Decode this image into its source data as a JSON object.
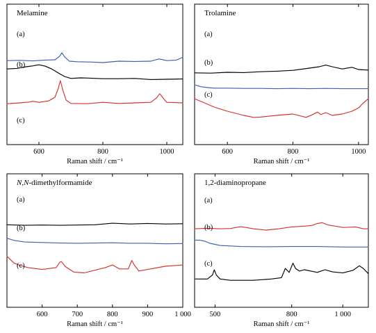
{
  "chart_data": [
    {
      "type": "line",
      "title": "Melamine",
      "title_italic_prefix": "",
      "xlabel": "Raman shift / cm⁻¹",
      "xlim": [
        500,
        1050
      ],
      "xticks": [
        600,
        800,
        1000
      ],
      "tick_labels": [
        "600",
        "800",
        "1000"
      ],
      "y_axis": "none (stacked, offset traces)",
      "grid": false,
      "series": [
        {
          "name": "(a)",
          "color": "#3a5fb0",
          "x": [
            500,
            540,
            580,
            620,
            650,
            665,
            672,
            680,
            695,
            720,
            760,
            800,
            850,
            900,
            950,
            975,
            985,
            1000,
            1030,
            1050
          ],
          "y": [
            0.62,
            0.63,
            0.61,
            0.64,
            0.65,
            0.78,
            0.9,
            0.76,
            0.6,
            0.58,
            0.57,
            0.55,
            0.6,
            0.59,
            0.6,
            0.68,
            0.66,
            0.62,
            0.64,
            0.74
          ]
        },
        {
          "name": "(b)",
          "color": "#000000",
          "x": [
            500,
            530,
            560,
            580,
            600,
            620,
            640,
            660,
            680,
            700,
            730,
            760,
            800,
            850,
            900,
            950,
            1000,
            1050
          ],
          "y": [
            0.32,
            0.34,
            0.4,
            0.43,
            0.47,
            0.42,
            0.32,
            0.18,
            0.05,
            -0.02,
            0.0,
            -0.01,
            -0.03,
            -0.03,
            -0.02,
            -0.06,
            -0.05,
            -0.04
          ]
        },
        {
          "name": "(c)",
          "color": "#d6322c",
          "x": [
            500,
            540,
            570,
            580,
            600,
            630,
            650,
            660,
            667,
            675,
            685,
            700,
            750,
            800,
            850,
            900,
            950,
            968,
            978,
            990,
            1000,
            1050
          ],
          "y": [
            -0.93,
            -0.9,
            -0.87,
            -0.84,
            -0.88,
            -0.83,
            -0.7,
            -0.4,
            -0.1,
            -0.45,
            -0.8,
            -0.92,
            -0.93,
            -0.88,
            -0.92,
            -0.9,
            -0.88,
            -0.72,
            -0.57,
            -0.75,
            -0.88,
            -0.9
          ]
        }
      ]
    },
    {
      "type": "line",
      "title": "Trolamine",
      "title_italic_prefix": "",
      "xlabel": "Raman shift / cm⁻¹",
      "xlim": [
        500,
        1030
      ],
      "xticks": [
        600,
        800,
        1000
      ],
      "tick_labels": [
        "600",
        "800",
        "1000"
      ],
      "y_axis": "none (stacked, offset traces)",
      "grid": false,
      "series": [
        {
          "name": "(a)",
          "color": "#000000",
          "x": [
            500,
            550,
            600,
            650,
            700,
            750,
            800,
            850,
            880,
            900,
            920,
            950,
            980,
            1000,
            1030
          ],
          "y": [
            0.38,
            0.37,
            0.4,
            0.39,
            0.42,
            0.44,
            0.47,
            0.55,
            0.6,
            0.66,
            0.6,
            0.52,
            0.58,
            0.5,
            0.48
          ]
        },
        {
          "name": "(b)",
          "color": "#3a5fb0",
          "x": [
            500,
            520,
            540,
            560,
            600,
            650,
            700,
            750,
            800,
            850,
            900,
            950,
            1000,
            1030
          ],
          "y": [
            -0.05,
            -0.12,
            -0.15,
            -0.17,
            -0.17,
            -0.18,
            -0.18,
            -0.19,
            -0.18,
            -0.19,
            -0.18,
            -0.19,
            -0.19,
            -0.19
          ]
        },
        {
          "name": "(c)",
          "color": "#d6322c",
          "x": [
            500,
            530,
            560,
            600,
            650,
            680,
            700,
            750,
            800,
            840,
            860,
            875,
            885,
            900,
            920,
            950,
            980,
            1000,
            1015,
            1030
          ],
          "y": [
            -0.55,
            -0.7,
            -0.85,
            -1.0,
            -1.15,
            -1.22,
            -1.21,
            -1.15,
            -1.1,
            -1.22,
            -1.12,
            -1.03,
            -1.12,
            -1.05,
            -1.15,
            -1.1,
            -1.0,
            -0.88,
            -0.7,
            -0.55
          ]
        }
      ]
    },
    {
      "type": "line",
      "title": "-dimethylformamide",
      "title_italic_prefix": "N,N",
      "xlabel": "Raman shift / cm⁻¹",
      "xlim": [
        500,
        1000
      ],
      "xticks": [
        600,
        700,
        800,
        900,
        1000
      ],
      "tick_labels": [
        "600",
        "700",
        "800",
        "900",
        "1 000"
      ],
      "y_axis": "none (stacked, offset traces)",
      "grid": false,
      "series": [
        {
          "name": "(a)",
          "color": "#000000",
          "x": [
            500,
            550,
            600,
            650,
            700,
            750,
            800,
            850,
            900,
            950,
            1000
          ],
          "y": [
            0.57,
            0.55,
            0.56,
            0.55,
            0.56,
            0.57,
            0.63,
            0.6,
            0.62,
            0.6,
            0.61
          ]
        },
        {
          "name": "(b)",
          "color": "#3a5fb0",
          "x": [
            500,
            520,
            550,
            600,
            650,
            700,
            750,
            800,
            850,
            900,
            950,
            1000
          ],
          "y": [
            0.06,
            -0.02,
            -0.08,
            -0.1,
            -0.12,
            -0.13,
            -0.12,
            -0.11,
            -0.13,
            -0.13,
            -0.15,
            -0.14
          ]
        },
        {
          "name": "(c)",
          "color": "#d6322c",
          "x": [
            500,
            520,
            540,
            560,
            600,
            640,
            650,
            655,
            665,
            690,
            720,
            750,
            780,
            800,
            820,
            845,
            855,
            862,
            875,
            900,
            950,
            1000
          ],
          "y": [
            -0.62,
            -0.88,
            -0.98,
            -1.05,
            -1.12,
            -1.05,
            -0.85,
            -0.82,
            -1.0,
            -1.22,
            -1.25,
            -1.15,
            -1.05,
            -0.95,
            -1.1,
            -1.1,
            -0.78,
            -0.95,
            -1.18,
            -1.12,
            -1.0,
            -0.95
          ]
        }
      ]
    },
    {
      "type": "line",
      "title": "1,2-diaminopropane",
      "title_italic_prefix": "",
      "xlabel": "Raman shift / cm⁻¹",
      "xlim": [
        420,
        1100
      ],
      "xticks": [
        500,
        800,
        1000
      ],
      "tick_labels": [
        "500",
        "800",
        "1 000"
      ],
      "y_axis": "none (stacked, offset traces)",
      "grid": false,
      "series": [
        {
          "name": "(a)",
          "color": "#d6322c",
          "x": [
            420,
            470,
            520,
            560,
            600,
            620,
            650,
            700,
            750,
            800,
            850,
            880,
            900,
            920,
            940,
            970,
            1000,
            1050,
            1080,
            1100
          ],
          "y": [
            0.55,
            0.57,
            0.55,
            0.56,
            0.63,
            0.6,
            0.55,
            0.5,
            0.55,
            0.62,
            0.65,
            0.68,
            0.75,
            0.78,
            0.7,
            0.65,
            0.6,
            0.62,
            0.55,
            0.55
          ]
        },
        {
          "name": "(b)",
          "color": "#3a5fb0",
          "x": [
            420,
            440,
            460,
            480,
            520,
            560,
            600,
            700,
            800,
            900,
            1000,
            1100
          ],
          "y": [
            0.12,
            0.12,
            0.08,
            0.0,
            -0.08,
            -0.1,
            -0.12,
            -0.13,
            -0.12,
            -0.12,
            -0.14,
            -0.14
          ]
        },
        {
          "name": "(c)",
          "color": "#000000",
          "x": [
            420,
            470,
            490,
            497,
            505,
            520,
            560,
            650,
            720,
            760,
            775,
            790,
            805,
            815,
            830,
            850,
            875,
            900,
            930,
            960,
            1000,
            1040,
            1065,
            1080,
            1100
          ],
          "y": [
            -1.35,
            -1.35,
            -1.2,
            -1.0,
            -1.2,
            -1.35,
            -1.4,
            -1.4,
            -1.35,
            -1.3,
            -0.95,
            -1.1,
            -0.75,
            -0.95,
            -1.05,
            -1.0,
            -1.05,
            -1.1,
            -1.0,
            -1.08,
            -1.12,
            -1.02,
            -0.85,
            -0.95,
            -1.15
          ]
        }
      ]
    }
  ]
}
